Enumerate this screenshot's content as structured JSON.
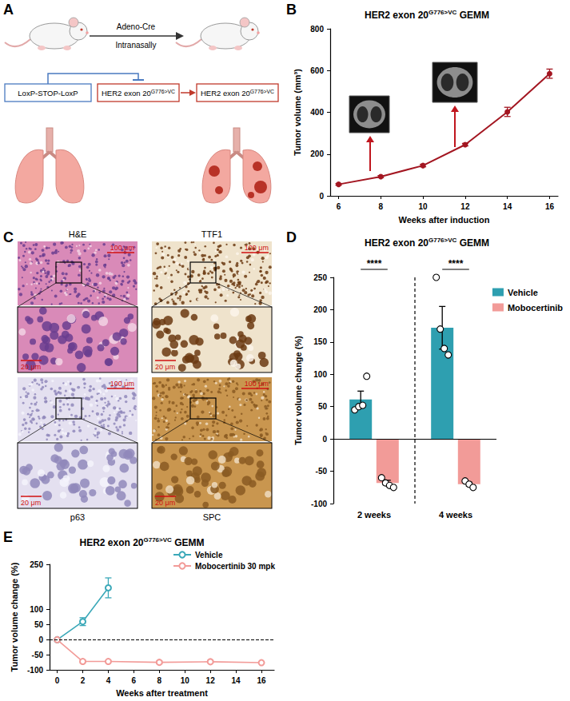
{
  "panel_labels": [
    "A",
    "B",
    "C",
    "D",
    "E"
  ],
  "diagram": {
    "arrow_label_top": "Adeno-Cre",
    "arrow_label_bottom": "Intranasally",
    "stop_box": "LoxP-STOP-LoxP",
    "allele_boxes": [
      "HER2 exon 20G776>VC",
      "HER2 exon 20G776>VC"
    ],
    "superscript": "G776>VC"
  },
  "histology": [
    {
      "stain": "H&E",
      "scale_overview": "100 μm",
      "scale_zoom": "20 μm"
    },
    {
      "stain": "TTF1",
      "scale_overview": "100 μm",
      "scale_zoom": "20 μm"
    },
    {
      "stain": "p63",
      "scale_overview": "100 μm",
      "scale_zoom": "20 μm"
    },
    {
      "stain": "SPC",
      "scale_overview": "100 μm",
      "scale_zoom": "20 μm"
    }
  ],
  "chart_data": [
    {
      "type": "line",
      "title": "HER2 exon 20G776>VC GEMM",
      "title_superscript": "G776>VC",
      "x": [
        6,
        8,
        10,
        12,
        14,
        16
      ],
      "values": [
        55,
        92,
        145,
        245,
        402,
        585
      ],
      "errors": [
        4,
        5,
        6,
        6,
        22,
        22
      ],
      "color": "#a31621",
      "marker": "circle",
      "xlabel": "Weeks after induction",
      "ylabel": "Tumor volume (mm³)",
      "xlim": [
        5.6,
        16.4
      ],
      "ylim": [
        0,
        800
      ],
      "xticks": [
        6,
        8,
        10,
        12,
        14,
        16
      ],
      "yticks": [
        0,
        200,
        400,
        600,
        800
      ],
      "grid": false
    },
    {
      "type": "bar",
      "title": "HER2 exon 20G776>VC GEMM",
      "title_superscript": "G776>VC",
      "categories": [
        "2 weeks",
        "4 weeks"
      ],
      "series": [
        {
          "name": "Vehicle",
          "color": "#2e9fb0",
          "values": [
            61,
            172
          ],
          "errors": [
            13,
            33
          ],
          "points": [
            [
              45,
              50,
              52,
              97
            ],
            [
              250,
              170,
              140,
              130
            ]
          ]
        },
        {
          "name": "Mobocertinib",
          "color": "#f29b98",
          "values": [
            -68,
            -70
          ],
          "errors": [
            4,
            3
          ],
          "points": [
            [
              -60,
              -68,
              -72,
              -75
            ],
            [
              -65,
              -70,
              -75
            ]
          ]
        }
      ],
      "ylabel": "Tumor volume change (%)",
      "ylim": [
        -100,
        250
      ],
      "yticks": [
        -100,
        -50,
        0,
        50,
        100,
        150,
        200,
        250
      ],
      "significance": [
        "****",
        "****"
      ],
      "reference_y": 0,
      "legend": "top-right",
      "grid": false
    },
    {
      "type": "line",
      "title": "HER2 exon 20G776>VC GEMM",
      "title_superscript": "G776>VC",
      "series": [
        {
          "name": "Vehicle",
          "color": "#3aa8b8",
          "x": [
            0,
            2,
            4
          ],
          "values": [
            0,
            60,
            172
          ],
          "errors": [
            0,
            13,
            33
          ]
        },
        {
          "name": "Mobocertinib 30 mpk",
          "color": "#f29b98",
          "x": [
            0,
            2,
            4,
            8,
            12,
            16
          ],
          "values": [
            0,
            -72,
            -72,
            -75,
            -73,
            -76
          ],
          "errors": [
            0,
            4,
            2,
            4,
            4,
            2
          ]
        }
      ],
      "marker": "open circle",
      "xlabel": "Weeks after treatment",
      "ylabel": "Tumor volume change (%)",
      "xlim": [
        -0.6,
        17
      ],
      "ylim": [
        -100,
        250
      ],
      "xticks": [
        0,
        2,
        4,
        6,
        8,
        10,
        12,
        14,
        16
      ],
      "yticks": [
        -100,
        -50,
        0,
        50,
        100,
        250
      ],
      "reference_y": 0,
      "legend": "top-right",
      "grid": false
    }
  ]
}
